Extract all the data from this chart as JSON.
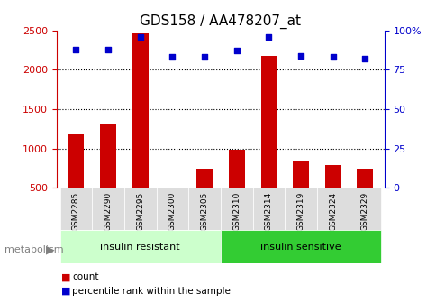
{
  "title": "GDS158 / AA478207_at",
  "samples": [
    "GSM2285",
    "GSM2290",
    "GSM2295",
    "GSM2300",
    "GSM2305",
    "GSM2310",
    "GSM2314",
    "GSM2319",
    "GSM2324",
    "GSM2329"
  ],
  "counts": [
    1180,
    1310,
    2460,
    450,
    740,
    990,
    2170,
    840,
    790,
    740
  ],
  "percentiles": [
    88,
    88,
    96,
    83,
    83,
    87,
    96,
    84,
    83,
    82
  ],
  "group1_label": "insulin resistant",
  "group1_indices": [
    0,
    1,
    2,
    3,
    4
  ],
  "group2_label": "insulin sensitive",
  "group2_indices": [
    5,
    6,
    7,
    8,
    9
  ],
  "metabolism_label": "metabolism",
  "ylim_left": [
    500,
    2500
  ],
  "ylim_right": [
    0,
    100
  ],
  "yticks_left": [
    500,
    1000,
    1500,
    2000,
    2500
  ],
  "yticks_right": [
    0,
    25,
    50,
    75,
    100
  ],
  "bar_color": "#cc0000",
  "dot_color": "#0000cc",
  "group1_color": "#ccffcc",
  "group2_color": "#33cc33",
  "tick_label_color_left": "#cc0000",
  "tick_label_color_right": "#0000cc",
  "bar_width": 0.5,
  "legend_count_label": "count",
  "legend_percentile_label": "percentile rank within the sample"
}
